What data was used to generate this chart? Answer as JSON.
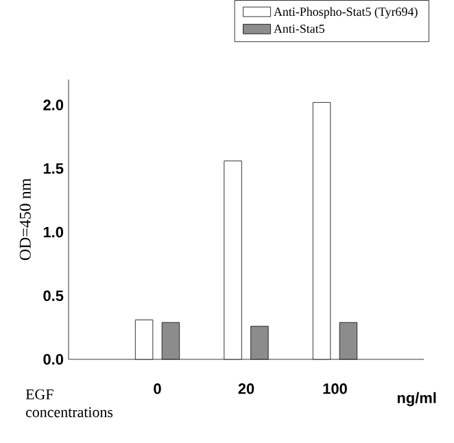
{
  "chart_data": {
    "type": "bar",
    "ylabel": "OD=450 nm",
    "categories": [
      "0",
      "20",
      "100"
    ],
    "series": [
      {
        "name": "Anti-Phospho-Stat5 (Tyr694)",
        "color": "#ffffff",
        "values": [
          0.31,
          1.56,
          2.02
        ]
      },
      {
        "name": "Anti-Stat5",
        "color": "#8c8c8c",
        "values": [
          0.29,
          0.26,
          0.29
        ]
      }
    ],
    "ylim": [
      0,
      2.2
    ],
    "yticks": [
      {
        "value": 0,
        "label": "0.0"
      },
      {
        "value": 0.5,
        "label": "0.5"
      },
      {
        "value": 1,
        "label": "1.0"
      },
      {
        "value": 1.5,
        "label": "1.5"
      },
      {
        "value": 2,
        "label": "2.0"
      }
    ],
    "legend": "top right",
    "grid": false,
    "annotations": [
      "EGF concentrations",
      "ng/ml"
    ]
  }
}
